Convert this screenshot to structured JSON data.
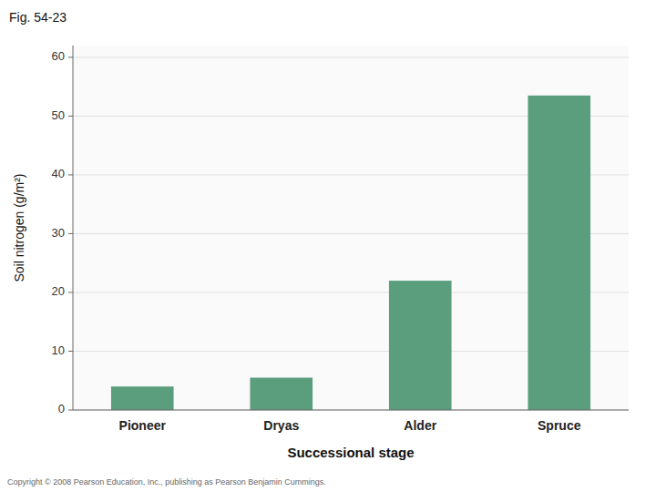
{
  "chart_data": {
    "type": "bar",
    "title": "Fig. 54-23",
    "categories": [
      "Pioneer",
      "Dryas",
      "Alder",
      "Spruce"
    ],
    "values": [
      4.0,
      5.5,
      22.0,
      53.5
    ],
    "color": "#5B9E7E",
    "xlabel": "Successional stage",
    "ylabel": "Soil nitrogen (g/m²)",
    "ylim": [
      0,
      62
    ],
    "yticks": [
      0,
      10,
      20,
      30,
      40,
      50,
      60
    ],
    "grid": true,
    "annotations": [
      "Copyright © 2008 Pearson Education, Inc., publishing as Pearson Benjamin Cummings."
    ]
  }
}
